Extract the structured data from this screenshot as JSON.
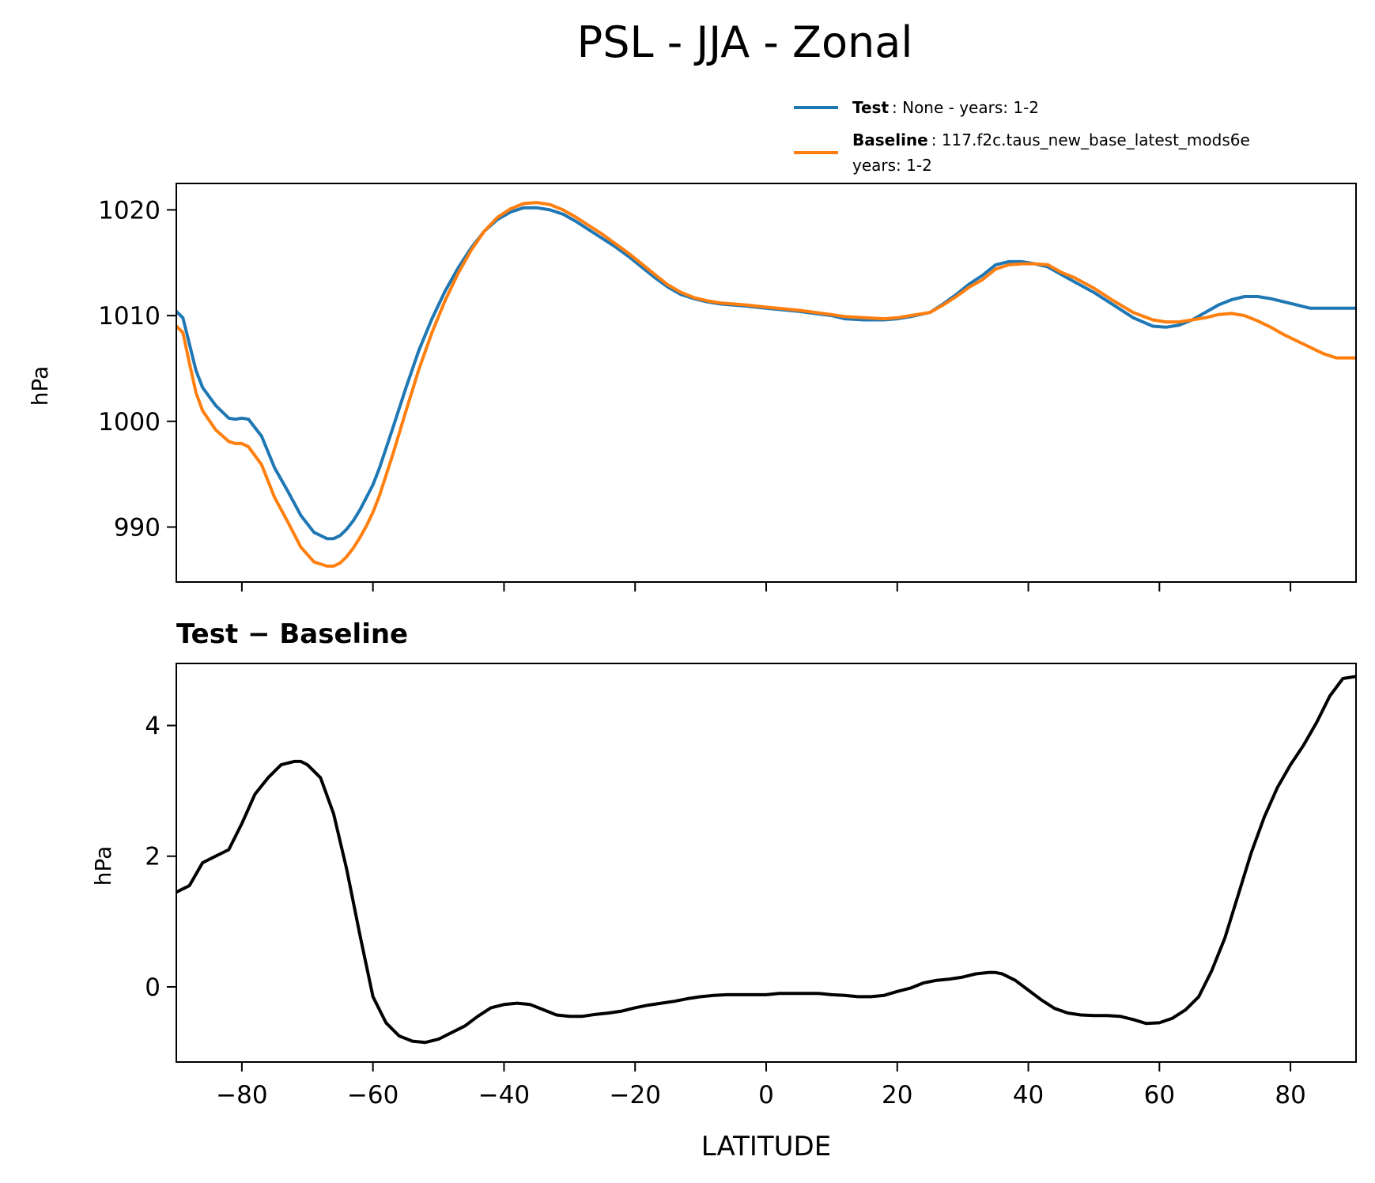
{
  "figure": {
    "title": "PSL - JJA - Zonal"
  },
  "legend": {
    "test_label": "Test",
    "test_text": ": None - years: 1-2",
    "baseline_label": "Baseline",
    "baseline_text": ": 117.f2c.taus_new_base_latest_mods6e",
    "baseline_text_line2": "years: 1-2"
  },
  "colors": {
    "test": "#1f77b4",
    "baseline": "#ff7f0e",
    "diff": "#000000"
  },
  "chart_data": [
    {
      "type": "line",
      "ylabel": "hPa",
      "xlabel": "",
      "xlim": [
        -90,
        90
      ],
      "ylim": [
        984.8,
        1022.5
      ],
      "xticks": [
        -80,
        -60,
        -40,
        -20,
        0,
        20,
        40,
        60,
        80
      ],
      "yticks": [
        990,
        1000,
        1010,
        1020
      ],
      "ytick_labels": [
        "990",
        "1000",
        "1010",
        "1020"
      ],
      "legend_position": "above-right",
      "grid": false,
      "series": [
        {
          "name": "Test",
          "x": [
            -90,
            -89,
            -88,
            -87,
            -86,
            -84,
            -82,
            -81,
            -80,
            -79,
            -77,
            -75,
            -73,
            -71,
            -69,
            -67,
            -66,
            -65,
            -64,
            -63,
            -62,
            -61,
            -60,
            -59,
            -57,
            -55,
            -53,
            -51,
            -49,
            -47,
            -45,
            -43,
            -41,
            -39,
            -37,
            -35,
            -33,
            -31,
            -29,
            -27,
            -25,
            -23,
            -21,
            -19,
            -17,
            -15,
            -13,
            -11,
            -9,
            -7,
            -5,
            -3,
            0,
            5,
            10,
            12,
            15,
            18,
            20,
            22,
            25,
            27,
            29,
            31,
            33,
            35,
            37,
            39,
            41,
            43,
            45,
            47,
            50,
            53,
            56,
            59,
            61,
            63,
            65,
            67,
            69,
            71,
            73,
            75,
            77,
            79,
            81,
            83,
            85,
            87,
            90
          ],
          "values": [
            1010.4,
            1009.8,
            1007.3,
            1004.8,
            1003.2,
            1001.5,
            1000.3,
            1000.2,
            1000.3,
            1000.2,
            998.6,
            995.6,
            993.4,
            991.1,
            989.5,
            988.9,
            988.9,
            989.2,
            989.8,
            990.6,
            991.6,
            992.8,
            994.0,
            995.6,
            999.3,
            1003.1,
            1006.7,
            1009.7,
            1012.3,
            1014.5,
            1016.4,
            1018.0,
            1019.1,
            1019.8,
            1020.2,
            1020.2,
            1020.0,
            1019.6,
            1018.9,
            1018.1,
            1017.3,
            1016.5,
            1015.6,
            1014.6,
            1013.6,
            1012.7,
            1012.0,
            1011.6,
            1011.3,
            1011.1,
            1011.0,
            1010.9,
            1010.7,
            1010.4,
            1010.0,
            1009.7,
            1009.6,
            1009.6,
            1009.7,
            1009.9,
            1010.3,
            1011.1,
            1012.0,
            1013.0,
            1013.8,
            1014.8,
            1015.1,
            1015.1,
            1014.9,
            1014.6,
            1013.9,
            1013.2,
            1012.2,
            1011.0,
            1009.8,
            1009.0,
            1008.9,
            1009.1,
            1009.6,
            1010.3,
            1011.0,
            1011.5,
            1011.8,
            1011.8,
            1011.6,
            1011.3,
            1011.0,
            1010.7,
            1010.7,
            1010.7,
            1010.7
          ]
        },
        {
          "name": "Baseline",
          "x": [
            -90,
            -89,
            -88,
            -87,
            -86,
            -84,
            -82,
            -81,
            -80,
            -79,
            -77,
            -75,
            -73,
            -71,
            -69,
            -67,
            -66,
            -65,
            -64,
            -63,
            -62,
            -61,
            -60,
            -59,
            -57,
            -55,
            -53,
            -51,
            -49,
            -47,
            -45,
            -43,
            -41,
            -39,
            -37,
            -35,
            -33,
            -31,
            -29,
            -27,
            -25,
            -23,
            -21,
            -19,
            -17,
            -15,
            -13,
            -11,
            -9,
            -7,
            -5,
            -3,
            0,
            5,
            10,
            12,
            15,
            18,
            20,
            22,
            25,
            27,
            29,
            31,
            33,
            35,
            37,
            39,
            41,
            43,
            45,
            47,
            50,
            53,
            56,
            59,
            61,
            63,
            65,
            67,
            69,
            71,
            73,
            75,
            77,
            79,
            81,
            83,
            85,
            87,
            90
          ],
          "values": [
            1009.0,
            1008.4,
            1005.5,
            1002.7,
            1001.0,
            999.2,
            998.1,
            997.9,
            997.9,
            997.6,
            995.9,
            992.8,
            990.5,
            988.1,
            986.7,
            986.3,
            986.3,
            986.6,
            987.2,
            988.0,
            989.0,
            990.1,
            991.4,
            993.0,
            996.8,
            1000.9,
            1004.9,
            1008.4,
            1011.4,
            1014.0,
            1016.2,
            1018.0,
            1019.3,
            1020.1,
            1020.6,
            1020.7,
            1020.5,
            1020.0,
            1019.3,
            1018.5,
            1017.7,
            1016.8,
            1015.9,
            1014.9,
            1013.9,
            1012.9,
            1012.2,
            1011.7,
            1011.4,
            1011.2,
            1011.1,
            1011.0,
            1010.8,
            1010.5,
            1010.1,
            1009.9,
            1009.8,
            1009.7,
            1009.8,
            1010.0,
            1010.3,
            1011.0,
            1011.8,
            1012.7,
            1013.4,
            1014.4,
            1014.8,
            1014.9,
            1014.9,
            1014.8,
            1014.1,
            1013.6,
            1012.6,
            1011.4,
            1010.3,
            1009.6,
            1009.4,
            1009.4,
            1009.6,
            1009.8,
            1010.1,
            1010.2,
            1010.0,
            1009.5,
            1008.9,
            1008.2,
            1007.6,
            1007.0,
            1006.4,
            1006.0,
            1006.0
          ]
        }
      ]
    },
    {
      "type": "line",
      "title": "Test − Baseline",
      "xlabel": "LATITUDE",
      "ylabel": "hPa",
      "xlim": [
        -90,
        90
      ],
      "ylim": [
        -1.15,
        4.95
      ],
      "xticks": [
        -80,
        -60,
        -40,
        -20,
        0,
        20,
        40,
        60,
        80
      ],
      "xtick_labels": [
        "−80",
        "−60",
        "−40",
        "−20",
        "0",
        "20",
        "40",
        "60",
        "80"
      ],
      "yticks": [
        0,
        2,
        4
      ],
      "ytick_labels": [
        "0",
        "2",
        "4"
      ],
      "grid": false,
      "series": [
        {
          "x": [
            -90,
            -88,
            -86,
            -84,
            -82,
            -80,
            -78,
            -76,
            -74,
            -72,
            -71,
            -70,
            -68,
            -66,
            -64,
            -62,
            -60,
            -58,
            -56,
            -54,
            -52,
            -50,
            -48,
            -46,
            -44,
            -42,
            -40,
            -38,
            -36,
            -34,
            -32,
            -30,
            -28,
            -26,
            -24,
            -22,
            -20,
            -18,
            -16,
            -14,
            -12,
            -10,
            -8,
            -6,
            -4,
            -2,
            0,
            2,
            4,
            6,
            8,
            10,
            12,
            14,
            16,
            18,
            20,
            22,
            24,
            26,
            28,
            30,
            32,
            34,
            35,
            36,
            38,
            40,
            42,
            44,
            46,
            48,
            50,
            52,
            54,
            56,
            58,
            60,
            62,
            64,
            66,
            68,
            70,
            72,
            74,
            76,
            78,
            80,
            82,
            84,
            86,
            88,
            90
          ],
          "values": [
            1.45,
            1.55,
            1.9,
            2.0,
            2.1,
            2.5,
            2.95,
            3.2,
            3.4,
            3.45,
            3.45,
            3.4,
            3.2,
            2.65,
            1.8,
            0.8,
            -0.15,
            -0.55,
            -0.75,
            -0.83,
            -0.85,
            -0.8,
            -0.7,
            -0.6,
            -0.45,
            -0.32,
            -0.27,
            -0.25,
            -0.27,
            -0.35,
            -0.43,
            -0.45,
            -0.45,
            -0.42,
            -0.4,
            -0.37,
            -0.32,
            -0.28,
            -0.25,
            -0.22,
            -0.18,
            -0.15,
            -0.13,
            -0.12,
            -0.12,
            -0.12,
            -0.12,
            -0.1,
            -0.1,
            -0.1,
            -0.1,
            -0.12,
            -0.13,
            -0.15,
            -0.15,
            -0.13,
            -0.07,
            -0.02,
            0.06,
            0.1,
            0.12,
            0.15,
            0.2,
            0.22,
            0.22,
            0.2,
            0.1,
            -0.05,
            -0.2,
            -0.33,
            -0.4,
            -0.43,
            -0.44,
            -0.44,
            -0.45,
            -0.5,
            -0.56,
            -0.55,
            -0.48,
            -0.35,
            -0.15,
            0.25,
            0.75,
            1.4,
            2.05,
            2.6,
            3.05,
            3.4,
            3.7,
            4.05,
            4.45,
            4.72,
            4.75
          ]
        }
      ]
    }
  ]
}
